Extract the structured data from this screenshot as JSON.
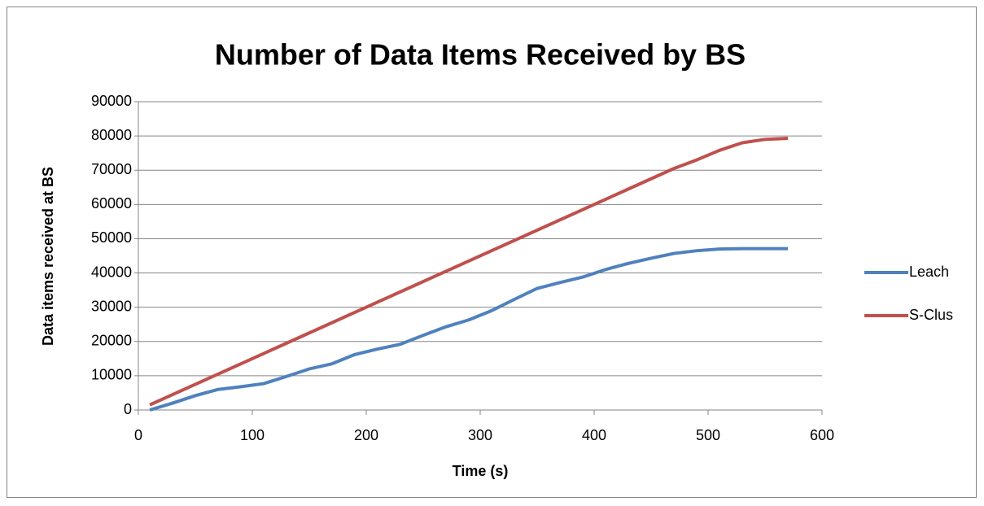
{
  "chart_data": {
    "type": "line",
    "title": "Number of Data Items Received by BS",
    "xlabel": "Time (s)",
    "ylabel": "Data items received at BS",
    "x": [
      10,
      30,
      50,
      70,
      90,
      110,
      130,
      150,
      170,
      190,
      210,
      230,
      250,
      270,
      290,
      310,
      330,
      350,
      370,
      390,
      410,
      430,
      450,
      470,
      490,
      510,
      530,
      550,
      570
    ],
    "series": [
      {
        "name": "Leach",
        "color": "#4f81bd",
        "values": [
          0,
          2000,
          4200,
          6000,
          6800,
          7700,
          9800,
          12000,
          13500,
          16200,
          17800,
          19200,
          21800,
          24300,
          26300,
          29000,
          32300,
          35500,
          37200,
          38800,
          41000,
          42800,
          44300,
          45700,
          46500,
          47000,
          47100,
          47100,
          47100
        ]
      },
      {
        "name": "S-Clus",
        "color": "#c0504d",
        "values": [
          1500,
          4500,
          7500,
          10500,
          13500,
          16500,
          19500,
          22500,
          25500,
          28500,
          31500,
          34500,
          37500,
          40500,
          43500,
          46500,
          49500,
          52500,
          55500,
          58500,
          61500,
          64500,
          67500,
          70500,
          73000,
          75800,
          78000,
          79000,
          79300
        ]
      }
    ],
    "xlim": [
      0,
      600
    ],
    "xticks": [
      0,
      100,
      200,
      300,
      400,
      500,
      600
    ],
    "ylim": [
      0,
      90000
    ],
    "yticks": [
      0,
      10000,
      20000,
      30000,
      40000,
      50000,
      60000,
      70000,
      80000,
      90000
    ],
    "grid": true,
    "legend": "right"
  }
}
